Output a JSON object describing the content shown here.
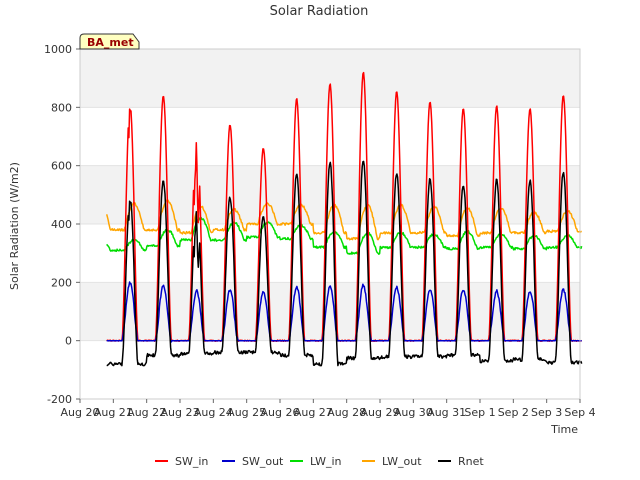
{
  "chart_data": {
    "type": "line",
    "title": "Solar Radiation",
    "ylabel": "Solar Radiation (W/m2)",
    "xlabel": "Time",
    "badge": "BA_met",
    "ylim": [
      -200,
      1000
    ],
    "yticks": [
      -200,
      0,
      200,
      400,
      600,
      800,
      1000
    ],
    "xlim": [
      "2023-08-20",
      "2023-09-04"
    ],
    "xticks": [
      "Aug 20",
      "Aug 21",
      "Aug 22",
      "Aug 23",
      "Aug 24",
      "Aug 25",
      "Aug 26",
      "Aug 27",
      "Aug 28",
      "Aug 29",
      "Aug 30",
      "Aug 31",
      "Sep 1",
      "Sep 2",
      "Sep 3",
      "Sep 4"
    ],
    "legend_position": "bottom",
    "grid": true,
    "series": [
      {
        "name": "SW_in",
        "color": "#ff0000"
      },
      {
        "name": "SW_out",
        "color": "#0000cc"
      },
      {
        "name": "LW_in",
        "color": "#00dd00"
      },
      {
        "name": "LW_out",
        "color": "#ffa500"
      },
      {
        "name": "Rnet",
        "color": "#000000"
      }
    ],
    "daily_peaks": {
      "dates": [
        "Aug 21",
        "Aug 22",
        "Aug 23",
        "Aug 24",
        "Aug 25",
        "Aug 26",
        "Aug 27",
        "Aug 28",
        "Aug 29",
        "Aug 30",
        "Aug 31",
        "Sep 1",
        "Sep 2",
        "Sep 3"
      ],
      "SW_in": [
        810,
        840,
        725,
        740,
        660,
        830,
        880,
        920,
        855,
        820,
        795,
        805,
        795,
        840
      ],
      "SW_out": [
        200,
        190,
        170,
        175,
        165,
        185,
        185,
        190,
        185,
        175,
        175,
        170,
        170,
        175
      ],
      "LW_in_day": [
        345,
        380,
        420,
        405,
        405,
        395,
        375,
        370,
        370,
        365,
        375,
        365,
        360,
        360
      ],
      "LW_in_night": [
        310,
        325,
        345,
        345,
        355,
        350,
        320,
        300,
        320,
        320,
        315,
        320,
        315,
        320
      ],
      "LW_out_day": [
        470,
        480,
        460,
        450,
        470,
        465,
        465,
        465,
        465,
        460,
        455,
        455,
        440,
        445
      ],
      "LW_out_night": [
        380,
        380,
        370,
        380,
        400,
        400,
        370,
        350,
        370,
        370,
        360,
        370,
        370,
        375
      ],
      "Rnet": [
        490,
        550,
        480,
        490,
        430,
        575,
        610,
        620,
        575,
        555,
        535,
        555,
        550,
        580
      ],
      "Rnet_night": [
        -80,
        -50,
        -45,
        -40,
        -40,
        -50,
        -80,
        -60,
        -55,
        -55,
        -50,
        -70,
        -65,
        -75
      ]
    }
  }
}
